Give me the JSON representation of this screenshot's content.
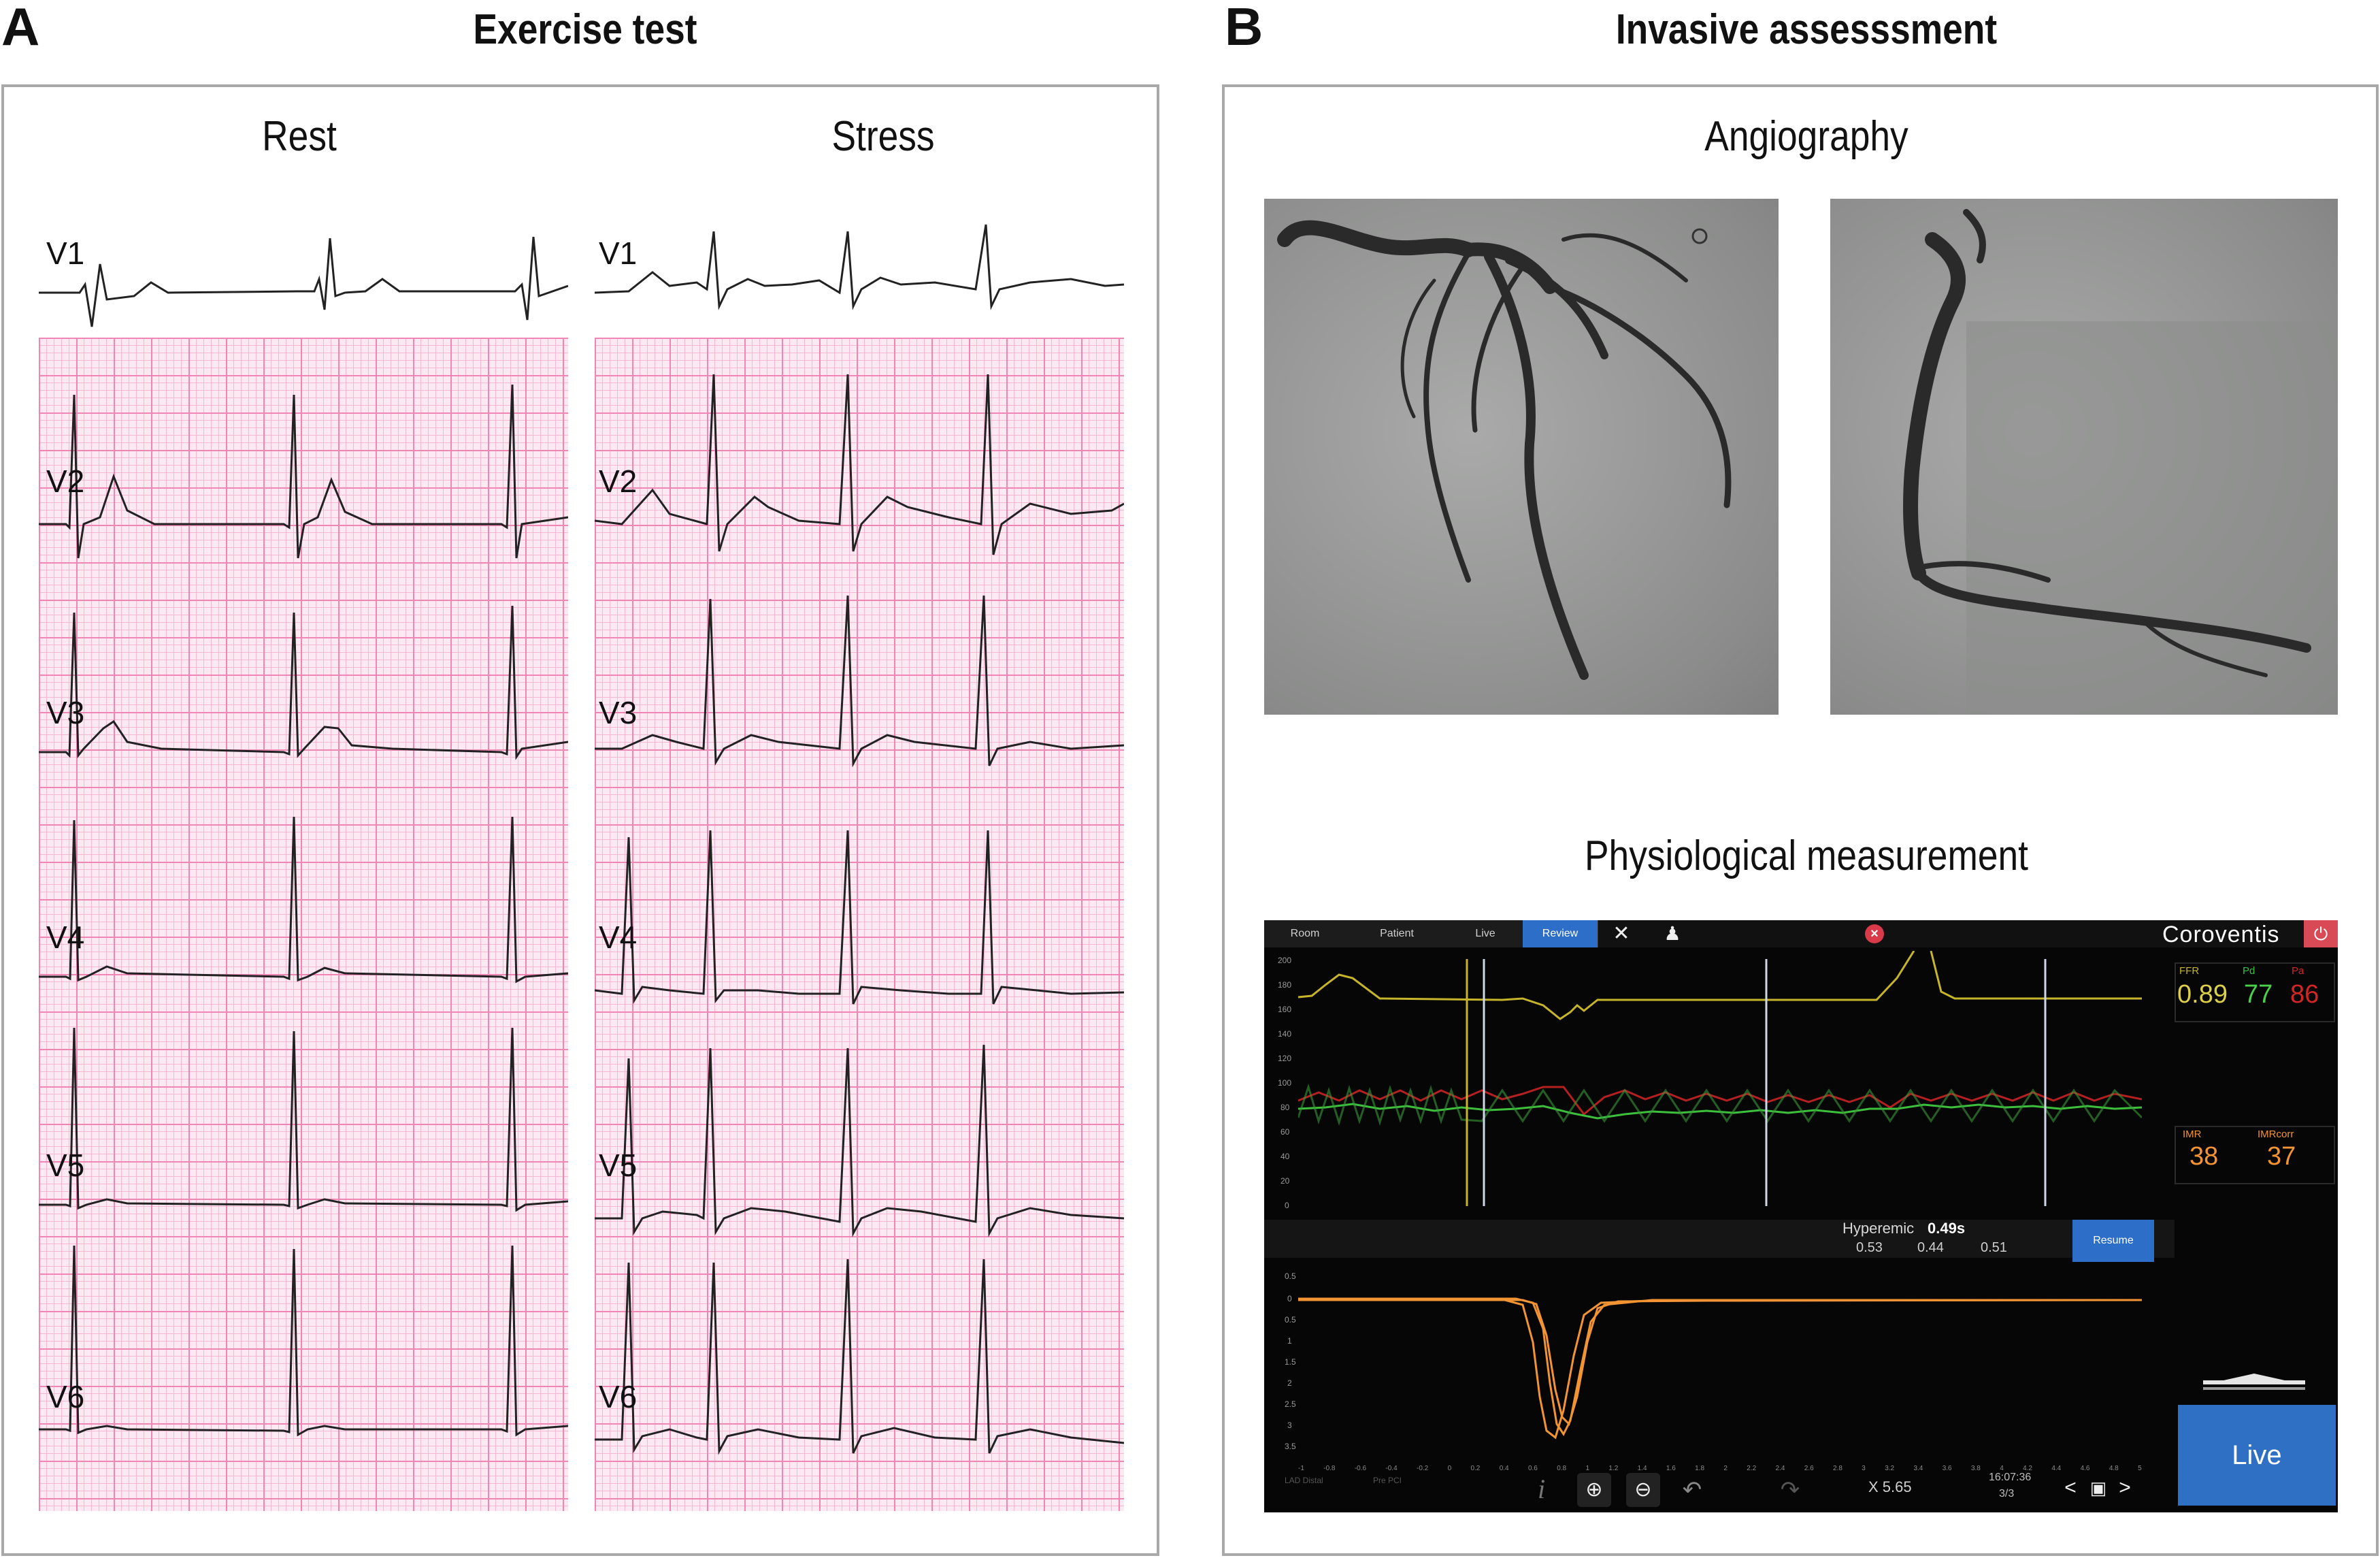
{
  "panel_a": {
    "letter": "A",
    "title": "Exercise test",
    "rest_label": "Rest",
    "stress_label": "Stress",
    "leads": [
      "V1",
      "V2",
      "V3",
      "V4",
      "V5",
      "V6"
    ]
  },
  "panel_b": {
    "letter": "B",
    "title": "Invasive assesssment",
    "angiography_label": "Angiography",
    "physio_label": "Physiological measurement"
  },
  "monitor": {
    "tabs": [
      "Room",
      "Patient",
      "Live",
      "Review"
    ],
    "active_tab": "Review",
    "brand": "Coroventis",
    "ffr_label": "FFR",
    "ffr_value": "0.89",
    "pd_label": "Pd",
    "pd_value": "77",
    "pa_label": "Pa",
    "pa_value": "86",
    "imr_label": "IMR",
    "imr_value": "38",
    "imr_corr_label": "IMRcorr",
    "imr_corr_value": "37",
    "hyperemic_label": "Hyperemic",
    "hyperemic_value": "0.49s",
    "transit_times": [
      "0.53",
      "0.44",
      "0.51"
    ],
    "resume_label": "Resume",
    "pressure_ticks": [
      "200",
      "180",
      "160",
      "140",
      "120",
      "100",
      "80",
      "60",
      "40",
      "20",
      "0"
    ],
    "thermo_ticks": [
      "0.5",
      "0",
      "0.5",
      "1",
      "1.5",
      "2",
      "2.5",
      "3",
      "3.5"
    ],
    "x_ticks": [
      "-1",
      "-0.8",
      "-0.6",
      "-0.4",
      "-0.2",
      "0",
      "0.2",
      "0.4",
      "0.6",
      "0.8",
      "1",
      "1.2",
      "1.4",
      "1.6",
      "1.8",
      "2",
      "2.2",
      "2.4",
      "2.6",
      "2.8",
      "3",
      "3.2",
      "3.4",
      "3.6",
      "3.8",
      "4",
      "4.2",
      "4.4",
      "4.6",
      "4.8",
      "5"
    ],
    "footer_left1": "LAD Distal",
    "footer_left2": "Pre PCI",
    "info_icon": "i",
    "zoom_readout": "X 5.65",
    "time_readout": "16:07:36",
    "page_readout": "3/3",
    "live_label": "Live",
    "colors": {
      "pa": "#d42525",
      "pd": "#3cc03c",
      "aortic": "#c6b42a",
      "thermo": "#f29433",
      "active_tab": "#2d6fc8",
      "live_button": "#2f6fc4"
    }
  }
}
